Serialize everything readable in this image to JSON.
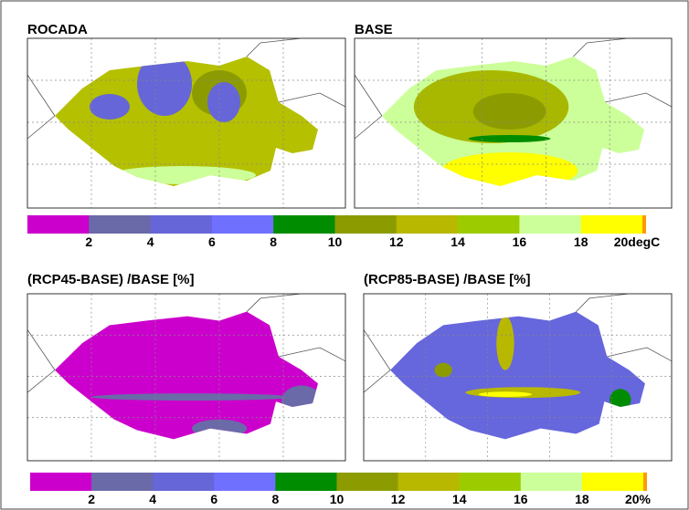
{
  "panels": [
    {
      "title": "ROCADA"
    },
    {
      "title": "BASE"
    },
    {
      "title": "(RCP45-BASE) /BASE  [%]"
    },
    {
      "title": "(RCP85-BASE) /BASE  [%]"
    }
  ],
  "colorbars": [
    {
      "labels": [
        "2",
        "4",
        "6",
        "8",
        "10",
        "12",
        "14",
        "16",
        "18",
        "20degC"
      ]
    },
    {
      "labels": [
        "2",
        "4",
        "6",
        "8",
        "10",
        "12",
        "14",
        "16",
        "18",
        "20%"
      ]
    }
  ],
  "colors": [
    "#cc00cc",
    "#6a6aa8",
    "#6666d8",
    "#7070ff",
    "#008c00",
    "#8c9c00",
    "#b8b800",
    "#9ccc00",
    "#ccff99",
    "#ffff00"
  ]
}
